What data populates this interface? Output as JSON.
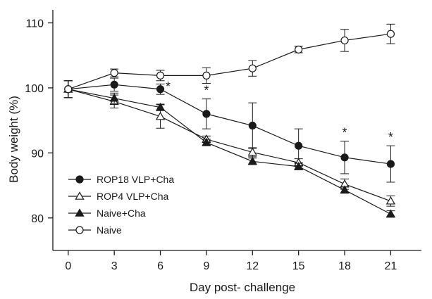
{
  "chart_data": {
    "type": "line",
    "title": "",
    "xlabel": "Day post- challenge",
    "ylabel": "Body weight (%)",
    "x": [
      0,
      3,
      6,
      9,
      12,
      15,
      18,
      21
    ],
    "xlim": [
      -1,
      23
    ],
    "ylim": [
      75,
      112
    ],
    "xticks": [
      0,
      3,
      6,
      9,
      12,
      15,
      18,
      21
    ],
    "yticks": [
      80,
      90,
      100,
      110
    ],
    "grid": false,
    "legend_position": "bottom-left",
    "series": [
      {
        "name": "ROP18 VLP+Cha",
        "marker": "circle-filled",
        "values": [
          99.8,
          100.5,
          99.8,
          96.0,
          94.2,
          91.1,
          89.3,
          88.3
        ],
        "errors": [
          1.3,
          1.0,
          0.8,
          2.3,
          3.5,
          2.6,
          2.5,
          2.8
        ]
      },
      {
        "name": "ROP4 VLP+Cha",
        "marker": "triangle-open",
        "values": [
          99.8,
          97.9,
          95.6,
          92.1,
          90.1,
          88.5,
          85.2,
          82.6
        ],
        "errors": [
          1.3,
          1.0,
          1.8,
          0.5,
          0.7,
          0.6,
          0.8,
          0.8
        ]
      },
      {
        "name": "Naive+Cha",
        "marker": "triangle-filled",
        "values": [
          99.8,
          98.4,
          97.0,
          91.6,
          88.7,
          87.9,
          84.3,
          80.6
        ],
        "errors": [
          1.3,
          0.8,
          0.5,
          0.5,
          0.5,
          0.5,
          0.5,
          0.5
        ]
      },
      {
        "name": "Naive",
        "marker": "circle-open",
        "values": [
          99.8,
          102.3,
          101.9,
          101.9,
          103.0,
          105.9,
          107.3,
          108.3
        ],
        "errors": [
          1.3,
          0.6,
          0.8,
          1.2,
          1.2,
          0.5,
          1.7,
          1.5
        ]
      }
    ],
    "annotations": [
      {
        "text": "*",
        "x": 6,
        "y": 99.8,
        "placement": "right"
      },
      {
        "text": "*",
        "x": 9,
        "y": 98.3,
        "placement": "above"
      },
      {
        "text": "*",
        "x": 18,
        "y": 91.8,
        "placement": "above"
      },
      {
        "text": "*",
        "x": 21,
        "y": 91.1,
        "placement": "above"
      }
    ]
  }
}
